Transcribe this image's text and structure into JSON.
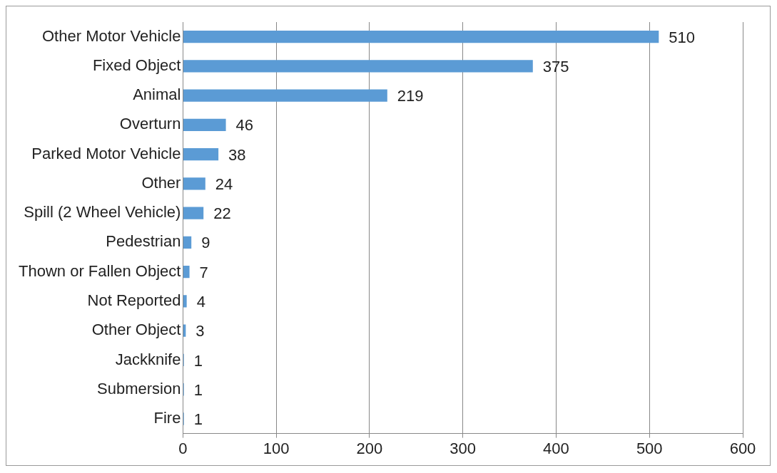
{
  "chart_data": {
    "type": "bar",
    "orientation": "horizontal",
    "categories": [
      "Other Motor Vehicle",
      "Fixed Object",
      "Animal",
      "Overturn",
      "Parked Motor Vehicle",
      "Other",
      "Spill (2 Wheel Vehicle)",
      "Pedestrian",
      "Thown or Fallen Object",
      "Not Reported",
      "Other Object",
      "Jackknife",
      "Submersion",
      "Fire"
    ],
    "values": [
      510,
      375,
      219,
      46,
      38,
      24,
      22,
      9,
      7,
      4,
      3,
      1,
      1,
      1
    ],
    "color": "#5b9bd5",
    "xlim": [
      0,
      600
    ],
    "xticks": [
      0,
      100,
      200,
      300,
      400,
      500,
      600
    ],
    "grid": "x",
    "legend": false,
    "data_labels": true
  }
}
